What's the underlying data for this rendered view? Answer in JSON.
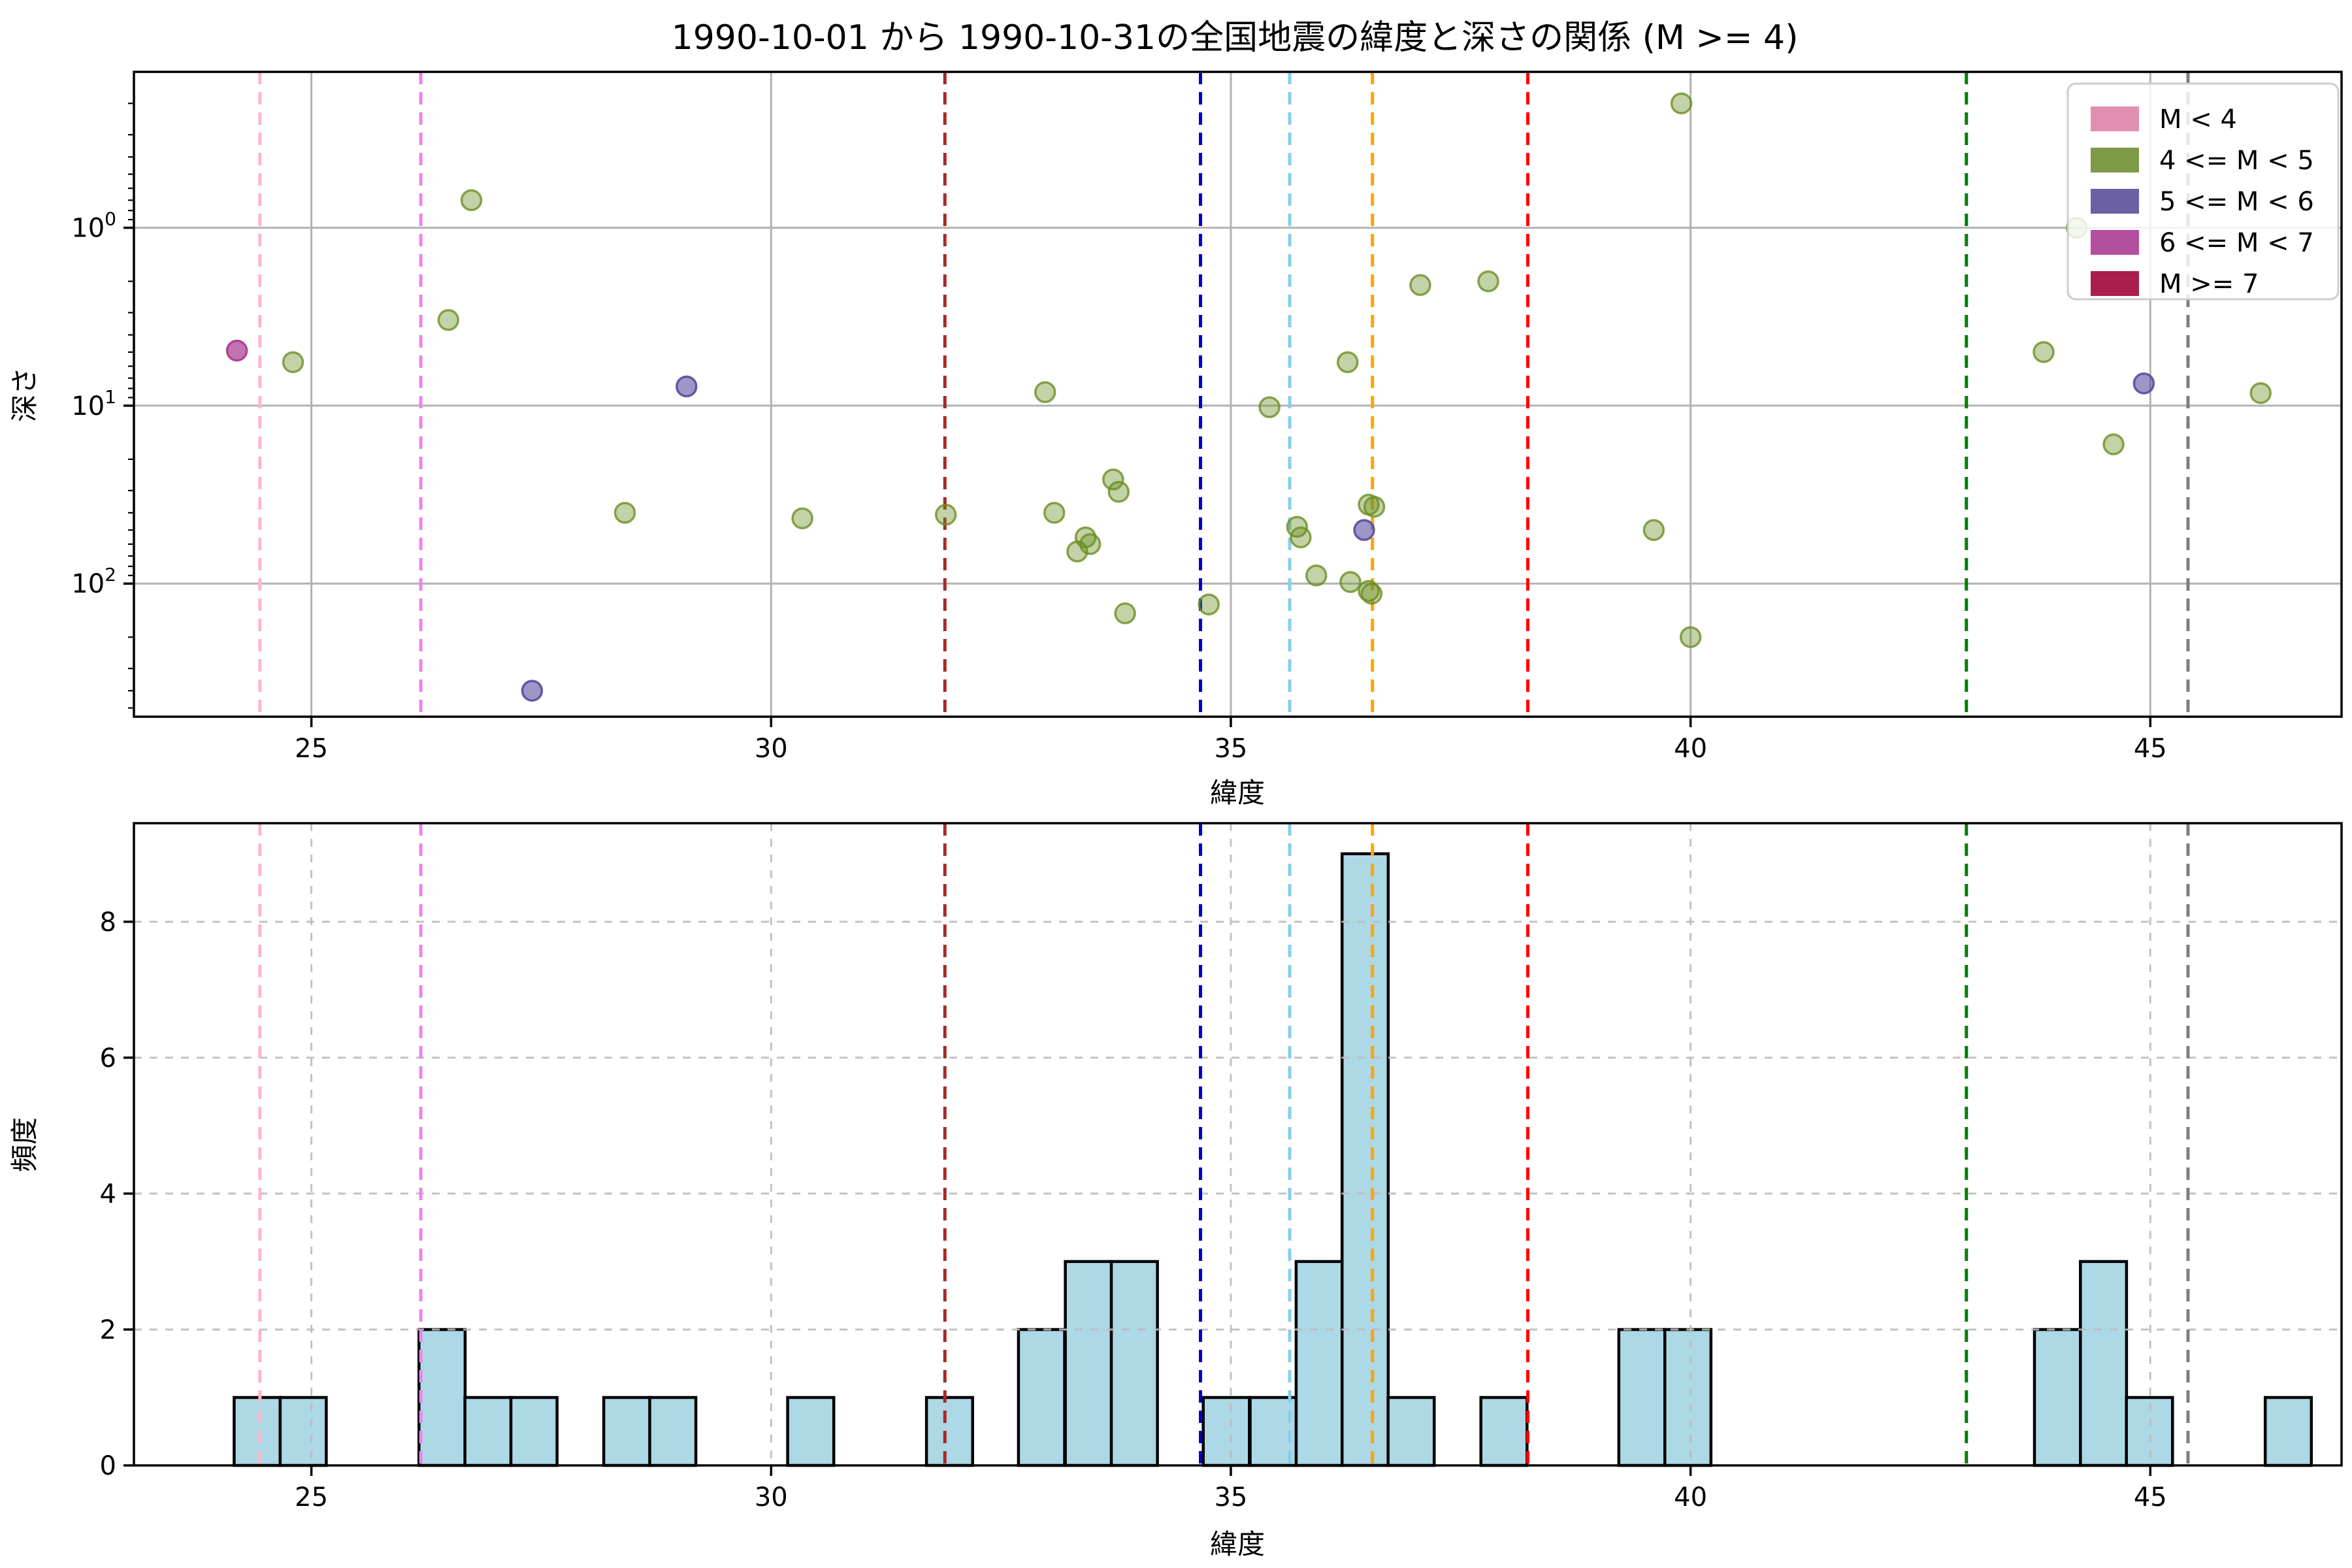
{
  "title": "1990-10-01 から 1990-10-31の全国地震の緯度と深さの関係 (M >= 4)",
  "axes": {
    "xlabel": "緯度",
    "scatter_ylabel": "深さ",
    "hist_ylabel": "頻度",
    "xticks": [
      25,
      30,
      35,
      40,
      45
    ],
    "scatter_ytick_exponents": [
      0,
      1,
      2
    ],
    "hist_yticks": [
      0,
      2,
      4,
      6,
      8
    ],
    "xlim": [
      23.07,
      47.08
    ],
    "scatter_depth_lim": [
      0.133,
      560
    ],
    "hist_ylim": [
      0,
      9.45
    ],
    "scatter_y_log_inverted": true
  },
  "legend": {
    "items": [
      {
        "label": "M < 4",
        "color": "#e18fb1"
      },
      {
        "label": "4 <= M < 5",
        "color": "#7f9a45"
      },
      {
        "label": "5 <= M < 6",
        "color": "#6c60a5"
      },
      {
        "label": "6 <= M < 7",
        "color": "#b44f9f"
      },
      {
        "label": "M >= 7",
        "color": "#aa1e4e"
      }
    ]
  },
  "vlines": [
    {
      "lat": 24.44,
      "color": "#ffb7c9"
    },
    {
      "lat": 26.19,
      "color": "#ee82ee"
    },
    {
      "lat": 31.89,
      "color": "#a52a2a"
    },
    {
      "lat": 34.67,
      "color": "#0000cd"
    },
    {
      "lat": 35.64,
      "color": "#87ceeb"
    },
    {
      "lat": 36.54,
      "color": "#ffa500"
    },
    {
      "lat": 38.23,
      "color": "#ff0000"
    },
    {
      "lat": 43.0,
      "color": "#008000"
    },
    {
      "lat": 45.41,
      "color": "#7f7f7f"
    }
  ],
  "chart_data": [
    {
      "type": "scatter",
      "title": "緯度と深さの関係",
      "xlabel": "緯度",
      "ylabel": "深さ",
      "ylog": true,
      "y_inverted": true,
      "series": [
        {
          "name": "4 <= M < 5",
          "color": "#6b8e23",
          "points": [
            [
              24.8,
              5.7
            ],
            [
              26.49,
              3.3
            ],
            [
              26.74,
              0.7
            ],
            [
              28.41,
              40
            ],
            [
              30.34,
              43
            ],
            [
              31.9,
              41
            ],
            [
              32.98,
              8.4
            ],
            [
              33.08,
              40
            ],
            [
              33.33,
              66
            ],
            [
              33.42,
              55
            ],
            [
              33.47,
              60
            ],
            [
              33.72,
              26
            ],
            [
              33.78,
              30.5
            ],
            [
              33.85,
              147
            ],
            [
              34.76,
              131
            ],
            [
              35.42,
              10.2
            ],
            [
              35.72,
              48
            ],
            [
              35.76,
              55
            ],
            [
              35.93,
              90
            ],
            [
              36.27,
              5.7
            ],
            [
              36.3,
              98
            ],
            [
              36.5,
              36
            ],
            [
              36.56,
              37
            ],
            [
              36.5,
              110
            ],
            [
              36.53,
              114
            ],
            [
              37.06,
              2.1
            ],
            [
              37.8,
              2.0
            ],
            [
              39.6,
              50
            ],
            [
              39.9,
              0.2
            ],
            [
              40.0,
              200
            ],
            [
              43.84,
              5.0
            ],
            [
              44.2,
              1.0
            ],
            [
              44.6,
              16.5
            ],
            [
              46.2,
              8.5
            ]
          ]
        },
        {
          "name": "5 <= M < 6",
          "color": "#584a9e",
          "points": [
            [
              27.4,
              400
            ],
            [
              29.08,
              7.8
            ],
            [
              36.45,
              50
            ],
            [
              44.93,
              7.5
            ]
          ]
        },
        {
          "name": "6 <= M < 7",
          "color": "#ad3d93",
          "points": [
            [
              24.19,
              4.9
            ]
          ]
        }
      ]
    },
    {
      "type": "bar",
      "title": "緯度の頻度分布",
      "xlabel": "緯度",
      "ylabel": "頻度",
      "bin_width": 0.502,
      "bar_color": "#add8e6",
      "bars": [
        [
          24.16,
          1
        ],
        [
          24.66,
          1
        ],
        [
          26.17,
          2
        ],
        [
          26.67,
          1
        ],
        [
          27.17,
          1
        ],
        [
          28.18,
          1
        ],
        [
          28.68,
          1
        ],
        [
          30.18,
          1
        ],
        [
          31.69,
          1
        ],
        [
          32.69,
          2
        ],
        [
          33.2,
          3
        ],
        [
          33.7,
          3
        ],
        [
          34.7,
          1
        ],
        [
          35.21,
          1
        ],
        [
          35.71,
          3
        ],
        [
          36.21,
          9
        ],
        [
          36.71,
          1
        ],
        [
          37.72,
          1
        ],
        [
          39.22,
          2
        ],
        [
          39.72,
          2
        ],
        [
          43.74,
          2
        ],
        [
          44.24,
          3
        ],
        [
          44.74,
          1
        ],
        [
          46.25,
          1
        ]
      ]
    }
  ]
}
